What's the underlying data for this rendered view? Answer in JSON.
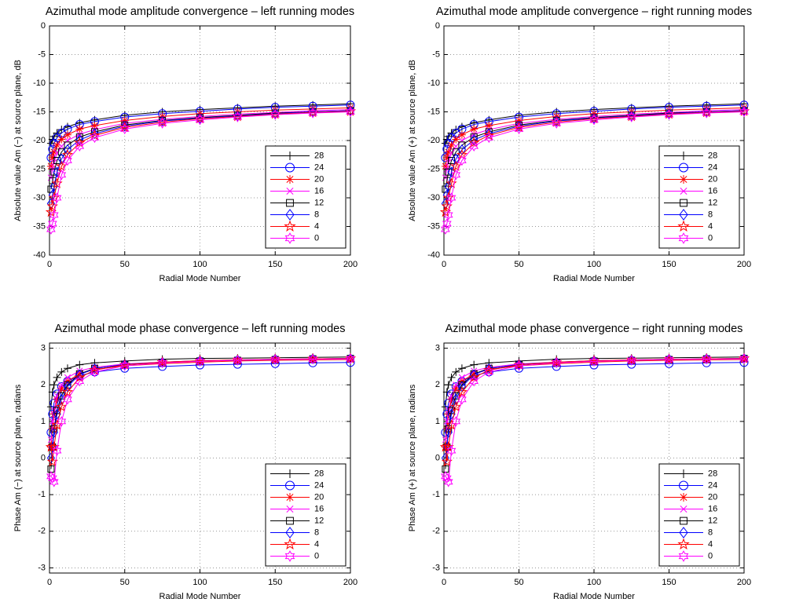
{
  "chart_data": [
    {
      "type": "line",
      "title": "Azimuthal mode amplitude convergence – left running modes",
      "xlabel": "Radial Mode Number",
      "ylabel": "Absolute value Am (−) at source plane, dB",
      "x": [
        1,
        2,
        3,
        5,
        8,
        12,
        20,
        30,
        50,
        75,
        100,
        125,
        150,
        175,
        200
      ],
      "series": [
        {
          "name": "28",
          "color": "#000000",
          "marker": "plus",
          "values": [
            -20.5,
            -19.8,
            -19.3,
            -18.7,
            -18.1,
            -17.6,
            -16.9,
            -16.4,
            -15.6,
            -15.0,
            -14.6,
            -14.3,
            -14.0,
            -13.8,
            -13.6
          ]
        },
        {
          "name": "24",
          "color": "#0000ff",
          "marker": "circle",
          "values": [
            -23.0,
            -21.5,
            -20.5,
            -19.5,
            -18.7,
            -18.0,
            -17.2,
            -16.7,
            -15.9,
            -15.3,
            -14.9,
            -14.5,
            -14.2,
            -14.0,
            -13.8
          ]
        },
        {
          "name": "20",
          "color": "#ff0000",
          "marker": "asterisk",
          "values": [
            -24.5,
            -23.0,
            -22.0,
            -20.8,
            -19.8,
            -19.0,
            -18.0,
            -17.4,
            -16.5,
            -15.8,
            -15.3,
            -15.0,
            -14.7,
            -14.5,
            -14.3
          ]
        },
        {
          "name": "16",
          "color": "#ff00ff",
          "marker": "x",
          "values": [
            -26.5,
            -25.0,
            -23.8,
            -22.2,
            -21.0,
            -20.0,
            -18.9,
            -18.1,
            -17.0,
            -16.3,
            -15.8,
            -15.4,
            -15.1,
            -14.8,
            -14.6
          ]
        },
        {
          "name": "12",
          "color": "#000000",
          "marker": "square",
          "values": [
            -28.5,
            -27.0,
            -25.5,
            -23.5,
            -22.0,
            -20.8,
            -19.4,
            -18.5,
            -17.3,
            -16.5,
            -16.0,
            -15.6,
            -15.2,
            -15.0,
            -14.8
          ]
        },
        {
          "name": "8",
          "color": "#0000ff",
          "marker": "diamond",
          "values": [
            -31.0,
            -29.5,
            -28.0,
            -25.5,
            -23.2,
            -21.6,
            -19.9,
            -18.8,
            -17.5,
            -16.6,
            -16.1,
            -15.7,
            -15.3,
            -15.0,
            -14.8
          ]
        },
        {
          "name": "4",
          "color": "#ff0000",
          "marker": "pentagram",
          "values": [
            -32.5,
            -31.5,
            -30.0,
            -27.5,
            -24.5,
            -22.5,
            -20.4,
            -19.1,
            -17.7,
            -16.8,
            -16.2,
            -15.8,
            -15.4,
            -15.1,
            -14.9
          ]
        },
        {
          "name": "0",
          "color": "#ff00ff",
          "marker": "hexagram",
          "values": [
            -35.5,
            -34.5,
            -33.0,
            -30.0,
            -26.0,
            -23.5,
            -21.0,
            -19.5,
            -18.0,
            -17.0,
            -16.4,
            -15.9,
            -15.5,
            -15.2,
            -15.0
          ]
        }
      ],
      "xlim": [
        0,
        200
      ],
      "ylim": [
        -40,
        0
      ],
      "xticks": [
        0,
        50,
        100,
        150,
        200
      ],
      "yticks": [
        -40,
        -35,
        -30,
        -25,
        -20,
        -15,
        -10,
        -5,
        0
      ],
      "grid": true,
      "legend": "lower right"
    },
    {
      "type": "line",
      "title": "Azimuthal mode amplitude convergence – right running modes",
      "xlabel": "Radial Mode Number",
      "ylabel": "Absolute value Am (+) at source plane, dB",
      "x": [
        1,
        2,
        3,
        5,
        8,
        12,
        20,
        30,
        50,
        75,
        100,
        125,
        150,
        175,
        200
      ],
      "series": [
        {
          "name": "28",
          "color": "#000000",
          "marker": "plus",
          "values": [
            -20.5,
            -19.8,
            -19.3,
            -18.7,
            -18.1,
            -17.6,
            -16.9,
            -16.4,
            -15.6,
            -15.0,
            -14.6,
            -14.3,
            -14.0,
            -13.8,
            -13.6
          ]
        },
        {
          "name": "24",
          "color": "#0000ff",
          "marker": "circle",
          "values": [
            -23.0,
            -21.5,
            -20.5,
            -19.5,
            -18.7,
            -18.0,
            -17.2,
            -16.7,
            -15.9,
            -15.3,
            -14.9,
            -14.5,
            -14.2,
            -14.0,
            -13.8
          ]
        },
        {
          "name": "20",
          "color": "#ff0000",
          "marker": "asterisk",
          "values": [
            -24.5,
            -23.0,
            -22.0,
            -20.8,
            -19.8,
            -19.0,
            -18.0,
            -17.4,
            -16.5,
            -15.8,
            -15.3,
            -15.0,
            -14.7,
            -14.5,
            -14.3
          ]
        },
        {
          "name": "16",
          "color": "#ff00ff",
          "marker": "x",
          "values": [
            -26.5,
            -25.0,
            -23.8,
            -22.2,
            -21.0,
            -20.0,
            -18.9,
            -18.1,
            -17.0,
            -16.3,
            -15.8,
            -15.4,
            -15.1,
            -14.8,
            -14.6
          ]
        },
        {
          "name": "12",
          "color": "#000000",
          "marker": "square",
          "values": [
            -28.5,
            -27.0,
            -25.5,
            -23.5,
            -22.0,
            -20.8,
            -19.4,
            -18.5,
            -17.3,
            -16.5,
            -16.0,
            -15.6,
            -15.2,
            -15.0,
            -14.8
          ]
        },
        {
          "name": "8",
          "color": "#0000ff",
          "marker": "diamond",
          "values": [
            -31.0,
            -29.5,
            -28.0,
            -25.5,
            -23.2,
            -21.6,
            -19.9,
            -18.8,
            -17.5,
            -16.6,
            -16.1,
            -15.7,
            -15.3,
            -15.0,
            -14.8
          ]
        },
        {
          "name": "4",
          "color": "#ff0000",
          "marker": "pentagram",
          "values": [
            -32.5,
            -31.5,
            -30.0,
            -27.5,
            -24.5,
            -22.5,
            -20.4,
            -19.1,
            -17.7,
            -16.8,
            -16.2,
            -15.8,
            -15.4,
            -15.1,
            -14.9
          ]
        },
        {
          "name": "0",
          "color": "#ff00ff",
          "marker": "hexagram",
          "values": [
            -35.5,
            -34.5,
            -33.0,
            -30.0,
            -26.0,
            -23.5,
            -21.0,
            -19.5,
            -18.0,
            -17.0,
            -16.4,
            -15.9,
            -15.5,
            -15.2,
            -15.0
          ]
        }
      ],
      "xlim": [
        0,
        200
      ],
      "ylim": [
        -40,
        0
      ],
      "xticks": [
        0,
        50,
        100,
        150,
        200
      ],
      "yticks": [
        -40,
        -35,
        -30,
        -25,
        -20,
        -15,
        -10,
        -5,
        0
      ],
      "grid": true,
      "legend": "lower right"
    },
    {
      "type": "line",
      "title": "Azimuthal mode phase convergence – left running modes",
      "xlabel": "Radial Mode Number",
      "ylabel": "Phase Am (−) at source plane, radians",
      "x": [
        1,
        2,
        3,
        5,
        8,
        12,
        20,
        30,
        50,
        75,
        100,
        125,
        150,
        175,
        200
      ],
      "series": [
        {
          "name": "28",
          "color": "#000000",
          "marker": "plus",
          "values": [
            1.4,
            1.8,
            2.0,
            2.2,
            2.35,
            2.45,
            2.55,
            2.6,
            2.65,
            2.7,
            2.72,
            2.73,
            2.74,
            2.75,
            2.76
          ]
        },
        {
          "name": "24",
          "color": "#0000ff",
          "marker": "circle",
          "values": [
            0.7,
            1.2,
            1.5,
            1.75,
            1.95,
            2.1,
            2.25,
            2.35,
            2.45,
            2.5,
            2.54,
            2.56,
            2.58,
            2.6,
            2.61
          ]
        },
        {
          "name": "20",
          "color": "#ff0000",
          "marker": "asterisk",
          "values": [
            0.3,
            0.8,
            1.2,
            1.6,
            1.9,
            2.1,
            2.3,
            2.42,
            2.52,
            2.58,
            2.62,
            2.65,
            2.67,
            2.68,
            2.69
          ]
        },
        {
          "name": "16",
          "color": "#ff00ff",
          "marker": "x",
          "values": [
            0.5,
            1.0,
            1.3,
            1.7,
            2.0,
            2.2,
            2.38,
            2.48,
            2.57,
            2.62,
            2.65,
            2.67,
            2.69,
            2.7,
            2.71
          ]
        },
        {
          "name": "12",
          "color": "#000000",
          "marker": "square",
          "values": [
            -0.3,
            0.3,
            0.8,
            1.3,
            1.7,
            2.0,
            2.3,
            2.45,
            2.55,
            2.61,
            2.65,
            2.67,
            2.69,
            2.71,
            2.72
          ]
        },
        {
          "name": "8",
          "color": "#0000ff",
          "marker": "diamond",
          "values": [
            0.0,
            0.3,
            0.7,
            1.2,
            1.6,
            1.95,
            2.28,
            2.44,
            2.56,
            2.62,
            2.66,
            2.68,
            2.7,
            2.71,
            2.72
          ]
        },
        {
          "name": "4",
          "color": "#ff0000",
          "marker": "pentagram",
          "values": [
            0.3,
            -0.1,
            0.3,
            0.9,
            1.4,
            1.8,
            2.2,
            2.4,
            2.55,
            2.62,
            2.66,
            2.68,
            2.7,
            2.71,
            2.72
          ]
        },
        {
          "name": "0",
          "color": "#ff00ff",
          "marker": "hexagram",
          "values": [
            -0.5,
            -0.55,
            -0.65,
            0.2,
            1.0,
            1.6,
            2.1,
            2.35,
            2.52,
            2.6,
            2.64,
            2.67,
            2.69,
            2.7,
            2.71
          ]
        }
      ],
      "xlim": [
        0,
        200
      ],
      "ylim": [
        -3.1416,
        3.1416
      ],
      "xticks": [
        0,
        50,
        100,
        150,
        200
      ],
      "yticks": [
        -3,
        -2,
        -1,
        0,
        1,
        2,
        3
      ],
      "grid": true,
      "legend": "lower right"
    },
    {
      "type": "line",
      "title": "Azimuthal mode phase convergence – right running modes",
      "xlabel": "Radial Mode Number",
      "ylabel": "Phase Am (+) at source plane, radians",
      "x": [
        1,
        2,
        3,
        5,
        8,
        12,
        20,
        30,
        50,
        75,
        100,
        125,
        150,
        175,
        200
      ],
      "series": [
        {
          "name": "28",
          "color": "#000000",
          "marker": "plus",
          "values": [
            1.4,
            1.8,
            2.0,
            2.2,
            2.35,
            2.45,
            2.55,
            2.6,
            2.65,
            2.7,
            2.72,
            2.73,
            2.74,
            2.75,
            2.76
          ]
        },
        {
          "name": "24",
          "color": "#0000ff",
          "marker": "circle",
          "values": [
            0.7,
            1.2,
            1.5,
            1.75,
            1.95,
            2.1,
            2.25,
            2.35,
            2.45,
            2.5,
            2.54,
            2.56,
            2.58,
            2.6,
            2.61
          ]
        },
        {
          "name": "20",
          "color": "#ff0000",
          "marker": "asterisk",
          "values": [
            0.3,
            0.8,
            1.2,
            1.6,
            1.9,
            2.1,
            2.3,
            2.42,
            2.52,
            2.58,
            2.62,
            2.65,
            2.67,
            2.68,
            2.69
          ]
        },
        {
          "name": "16",
          "color": "#ff00ff",
          "marker": "x",
          "values": [
            0.5,
            1.0,
            1.3,
            1.7,
            2.0,
            2.2,
            2.38,
            2.48,
            2.57,
            2.62,
            2.65,
            2.67,
            2.69,
            2.7,
            2.71
          ]
        },
        {
          "name": "12",
          "color": "#000000",
          "marker": "square",
          "values": [
            -0.3,
            0.3,
            0.8,
            1.3,
            1.7,
            2.0,
            2.3,
            2.45,
            2.55,
            2.61,
            2.65,
            2.67,
            2.69,
            2.71,
            2.72
          ]
        },
        {
          "name": "8",
          "color": "#0000ff",
          "marker": "diamond",
          "values": [
            0.0,
            0.3,
            0.7,
            1.2,
            1.6,
            1.95,
            2.28,
            2.44,
            2.56,
            2.62,
            2.66,
            2.68,
            2.7,
            2.71,
            2.72
          ]
        },
        {
          "name": "4",
          "color": "#ff0000",
          "marker": "pentagram",
          "values": [
            0.3,
            -0.1,
            0.3,
            0.9,
            1.4,
            1.8,
            2.2,
            2.4,
            2.55,
            2.62,
            2.66,
            2.68,
            2.7,
            2.71,
            2.72
          ]
        },
        {
          "name": "0",
          "color": "#ff00ff",
          "marker": "hexagram",
          "values": [
            -0.5,
            -0.55,
            -0.65,
            0.2,
            1.0,
            1.6,
            2.1,
            2.35,
            2.52,
            2.6,
            2.64,
            2.67,
            2.69,
            2.7,
            2.71
          ]
        }
      ],
      "xlim": [
        0,
        200
      ],
      "ylim": [
        -3.1416,
        3.1416
      ],
      "xticks": [
        0,
        50,
        100,
        150,
        200
      ],
      "yticks": [
        -3,
        -2,
        -1,
        0,
        1,
        2,
        3
      ],
      "grid": true,
      "legend": "lower right"
    }
  ]
}
